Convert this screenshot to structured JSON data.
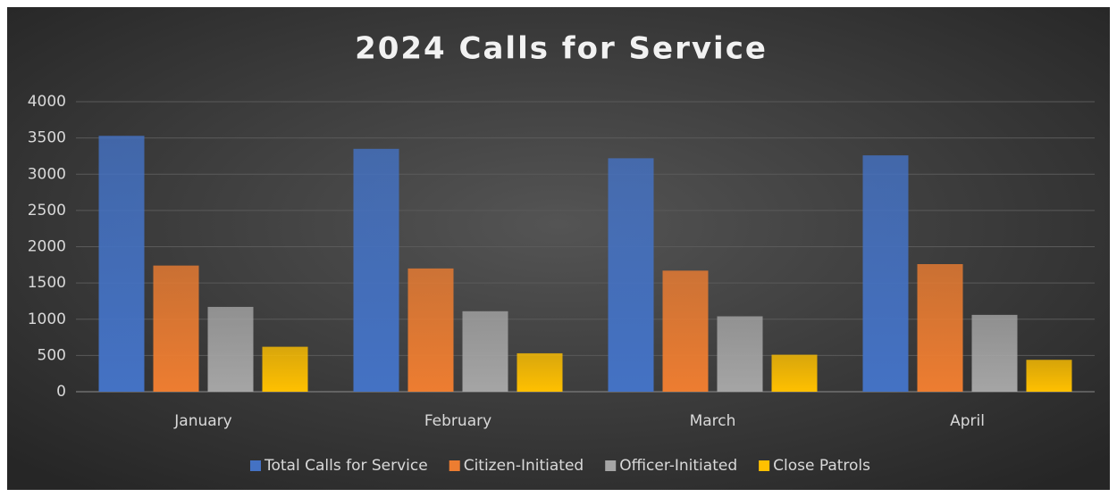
{
  "chart_data": {
    "type": "bar",
    "title": "2024 Calls for Service",
    "categories": [
      "January",
      "February",
      "March",
      "April"
    ],
    "series": [
      {
        "name": "Total Calls for Service",
        "color": "#4472c4",
        "values": [
          3530,
          3350,
          3220,
          3260
        ]
      },
      {
        "name": "Citizen-Initiated",
        "color": "#ed7d31",
        "values": [
          1740,
          1700,
          1670,
          1760
        ]
      },
      {
        "name": "Officer-Initiated",
        "color": "#a5a5a5",
        "values": [
          1170,
          1110,
          1040,
          1060
        ]
      },
      {
        "name": "Close Patrols",
        "color": "#ffc000",
        "values": [
          620,
          530,
          510,
          440
        ]
      }
    ],
    "ylim": [
      0,
      4000
    ],
    "yticks": [
      0,
      500,
      1000,
      1500,
      2000,
      2500,
      3000,
      3500,
      4000
    ],
    "grid": true,
    "legend": "bottom"
  }
}
